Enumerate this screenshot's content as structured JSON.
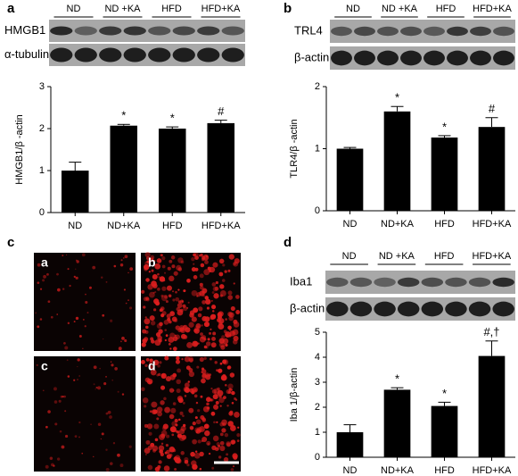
{
  "figure": {
    "panels": [
      {
        "label": "a",
        "lanes": [
          "ND",
          "ND +KA",
          "HFD",
          "HFD+KA"
        ],
        "blots": [
          "HMGB1",
          "α-tubulin"
        ]
      },
      {
        "label": "b",
        "lanes": [
          "ND",
          "ND +KA",
          "HFD",
          "HFD+KA"
        ],
        "blots": [
          "TRL4",
          "β-actin"
        ]
      },
      {
        "label": "c",
        "images": [
          "a",
          "b",
          "c",
          "d"
        ]
      },
      {
        "label": "d",
        "lanes": [
          "ND",
          "ND +KA",
          "HFD",
          "HFD+KA"
        ],
        "blots": [
          "Iba1",
          "β-actin"
        ]
      }
    ]
  },
  "chart_data": [
    {
      "type": "bar",
      "ylabel": "HMGB1/β -actin",
      "categories": [
        "ND",
        "ND+KA",
        "HFD",
        "HFD+KA"
      ],
      "values": [
        1.0,
        2.07,
        2.0,
        2.13
      ],
      "errors": [
        0.2,
        0.03,
        0.04,
        0.07
      ],
      "annotations": [
        null,
        "*",
        "*",
        "#"
      ],
      "color": "#000000",
      "ylim": [
        0,
        3
      ],
      "yticks": [
        0,
        1,
        2,
        3
      ]
    },
    {
      "type": "bar",
      "ylabel": "TLR4/β -actin",
      "categories": [
        "ND",
        "ND+KA",
        "HFD",
        "HFD+KA"
      ],
      "values": [
        1.0,
        1.6,
        1.18,
        1.35
      ],
      "errors": [
        0.02,
        0.08,
        0.03,
        0.15
      ],
      "annotations": [
        null,
        "*",
        "*",
        "#"
      ],
      "color": "#000000",
      "ylim": [
        0,
        2
      ],
      "yticks": [
        0,
        1,
        2
      ]
    },
    {
      "type": "bar",
      "ylabel": "Iba 1/β-actin",
      "categories": [
        "ND",
        "ND+KA",
        "HFD",
        "HFD+KA"
      ],
      "values": [
        1.0,
        2.7,
        2.05,
        4.05
      ],
      "errors": [
        0.3,
        0.08,
        0.15,
        0.6
      ],
      "annotations": [
        null,
        "*",
        "*",
        "#,†"
      ],
      "color": "#000000",
      "ylim": [
        0,
        5
      ],
      "yticks": [
        0,
        1,
        2,
        3,
        4,
        5
      ]
    }
  ]
}
